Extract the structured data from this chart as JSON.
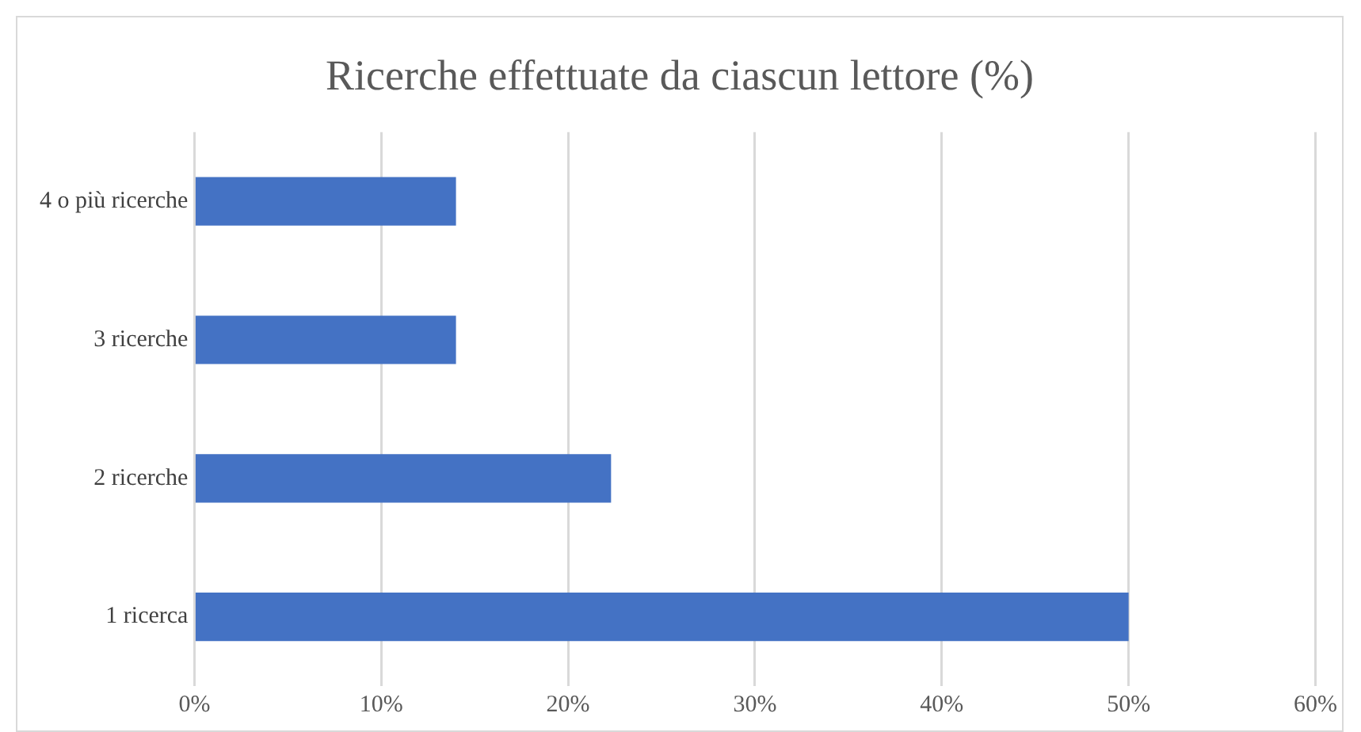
{
  "chart_data": {
    "type": "bar",
    "orientation": "horizontal",
    "title": "Ricerche effettuate da ciascun lettore (%)",
    "categories": [
      "4 o più ricerche",
      "3 ricerche",
      "2 ricerche",
      "1 ricerca"
    ],
    "values": [
      14,
      14,
      22.3,
      50
    ],
    "color": "#4472c4",
    "xlim": [
      0,
      60
    ],
    "xticks": [
      {
        "value": 0,
        "label": "0%"
      },
      {
        "value": 10,
        "label": "10%"
      },
      {
        "value": 20,
        "label": "20%"
      },
      {
        "value": 30,
        "label": "30%"
      },
      {
        "value": 40,
        "label": "40%"
      },
      {
        "value": 50,
        "label": "50%"
      },
      {
        "value": 60,
        "label": "60%"
      }
    ],
    "grid": "x",
    "legend": false
  }
}
